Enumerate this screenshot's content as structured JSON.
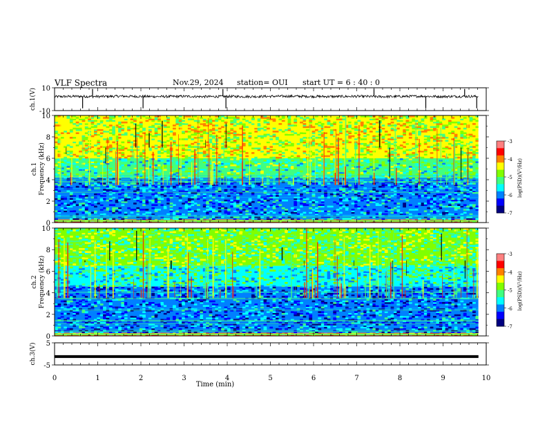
{
  "header": {
    "title": "VLF Spectra",
    "date": "Nov.29, 2024",
    "station": "station= OUI",
    "start_ut": "start  UT  =   6  : 40 : 0"
  },
  "chart_data": [
    {
      "type": "line",
      "panel": "ch1-waveform",
      "ylabel": "ch.1(V)",
      "ylim": [
        -10,
        10
      ],
      "y_ticks": [
        "10",
        "-10"
      ],
      "xlim": [
        0,
        10
      ],
      "x": [
        0,
        0.5,
        1,
        1.5,
        2,
        2.5,
        3,
        3.5,
        4,
        4.5,
        5,
        5.5,
        6,
        6.5,
        7,
        7.5,
        8,
        8.5,
        9,
        9.5,
        9.82
      ],
      "values": [
        2.2,
        2.5,
        2.3,
        2.6,
        2.4,
        2.3,
        2.5,
        2.2,
        2.4,
        2.3,
        2.5,
        2.6,
        2.4,
        2.3,
        2.5,
        2.2,
        2.4,
        2.6,
        2.3,
        2.5,
        2.4
      ],
      "spikes_x": [
        0.65,
        0.88,
        2.05,
        3.9,
        3.97,
        7.4,
        8.6,
        9.5,
        9.78
      ]
    },
    {
      "type": "heatmap",
      "panel": "ch1-spectrogram",
      "ylabel": "ch.1 Frequency (kHz)",
      "ylim": [
        0,
        10
      ],
      "y_ticks": [
        "0",
        "2",
        "4",
        "6",
        "8",
        "10"
      ],
      "xlim": [
        0,
        10
      ],
      "x_end": 9.82,
      "bands": [
        {
          "f_from": 0,
          "f_to": 0.3,
          "level": -3.9
        },
        {
          "f_from": 0.3,
          "f_to": 4.2,
          "level": -6.0
        },
        {
          "f_from": 4.2,
          "f_to": 6.0,
          "level": -5.2
        },
        {
          "f_from": 6.0,
          "f_to": 10,
          "level": -4.6
        }
      ],
      "colorbar": {
        "min": -7,
        "max": -3,
        "ticks": [
          "-3",
          "-4",
          "-5",
          "-6",
          "-7"
        ],
        "label": "log(PSD)(V²/Hz)"
      }
    },
    {
      "type": "heatmap",
      "panel": "ch2-spectrogram",
      "ylabel": "ch.2 Frequency (kHz)",
      "ylim": [
        0,
        10
      ],
      "y_ticks": [
        "0",
        "2",
        "4",
        "6",
        "8",
        "10"
      ],
      "xlim": [
        0,
        10
      ],
      "x_end": 9.82,
      "bands": [
        {
          "f_from": 0,
          "f_to": 0.3,
          "level": -3.9
        },
        {
          "f_from": 0.3,
          "f_to": 4.6,
          "level": -6.1
        },
        {
          "f_from": 4.6,
          "f_to": 6.5,
          "level": -5.4
        },
        {
          "f_from": 6.5,
          "f_to": 10,
          "level": -5.0
        }
      ],
      "colorbar": {
        "min": -7,
        "max": -3,
        "ticks": [
          "-3",
          "-4",
          "-5",
          "-6",
          "-7"
        ],
        "label": "log(PSD)(V²/Hz)"
      }
    },
    {
      "type": "line",
      "panel": "ch3-waveform",
      "ylabel": "ch.3(V)",
      "ylim": [
        -5,
        5
      ],
      "y_ticks": [
        "5",
        "-5"
      ],
      "xlim": [
        0,
        10
      ],
      "x": [
        0,
        9.82
      ],
      "values": [
        -1.2,
        -1.2
      ]
    }
  ],
  "x_axis": {
    "label": "Time (min)",
    "ticks": [
      "0",
      "1",
      "2",
      "3",
      "4",
      "5",
      "6",
      "7",
      "8",
      "9",
      "10"
    ]
  },
  "colormap": [
    "#000080",
    "#0000ff",
    "#0080ff",
    "#00ffff",
    "#40ff80",
    "#80ff00",
    "#ffff00",
    "#ff8000",
    "#ff0000",
    "#ff8080",
    "#ffffff"
  ]
}
